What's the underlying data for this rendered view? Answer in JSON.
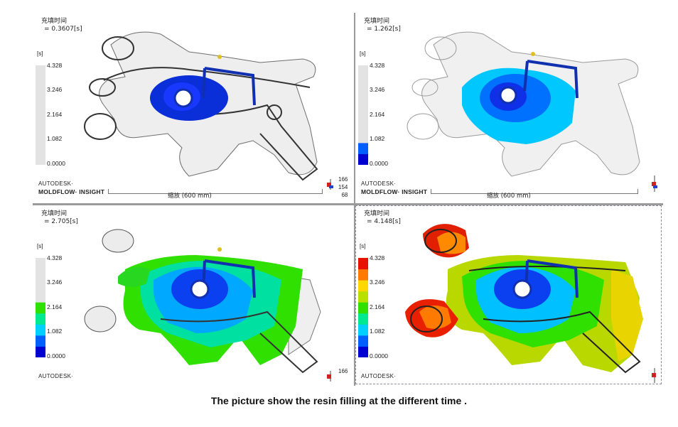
{
  "panes": [
    {
      "title_label": "充填时间",
      "time_value": "= 0.3607[s]",
      "unit": "[s]",
      "legend_labels": [
        "4.328",
        "3.246",
        "2.164",
        "1.082",
        "0.0000"
      ],
      "fill_fraction": 0.083,
      "brand_top": "AUTODESK·",
      "brand_product": "MOLDFLOW· INSIGHT",
      "scale_label": "缩放 (600 mm)",
      "axis_labels": [
        "166",
        "154",
        "68"
      ]
    },
    {
      "title_label": "充填时间",
      "time_value": "= 1.262[s]",
      "unit": "[s]",
      "legend_labels": [
        "4.328",
        "3.246",
        "2.164",
        "1.082",
        "0.0000"
      ],
      "fill_fraction": 0.292,
      "brand_top": "AUTODESK·",
      "brand_product": "MOLDFLOW· INSIGHT",
      "scale_label": "缩放 (600 mm)",
      "axis_labels": []
    },
    {
      "title_label": "充填时间",
      "time_value": "= 2.705[s]",
      "unit": "[s]",
      "legend_labels": [
        "4.328",
        "3.246",
        "2.164",
        "1.082",
        "0.0000"
      ],
      "fill_fraction": 0.625,
      "brand_top": "AUTODESK·",
      "brand_product": "",
      "scale_label": "",
      "axis_labels": [
        "166"
      ]
    },
    {
      "title_label": "充填时间",
      "time_value": "= 4.148[s]",
      "unit": "[s]",
      "legend_labels": [
        "4.328",
        "3.246",
        "2.164",
        "1.082",
        "0.0000"
      ],
      "fill_fraction": 1.0,
      "brand_top": "AUTODESK·",
      "brand_product": "",
      "scale_label": "",
      "axis_labels": []
    }
  ],
  "caption": "The picture show the resin filling at the different time .",
  "colors": {
    "unfilled": "#e3e3e3",
    "scale": [
      "#0000d0",
      "#0060ff",
      "#00d0ff",
      "#00e890",
      "#30e000",
      "#b8e000",
      "#ffd800",
      "#ff7a00",
      "#e81000"
    ],
    "runner": "#1030b0"
  }
}
